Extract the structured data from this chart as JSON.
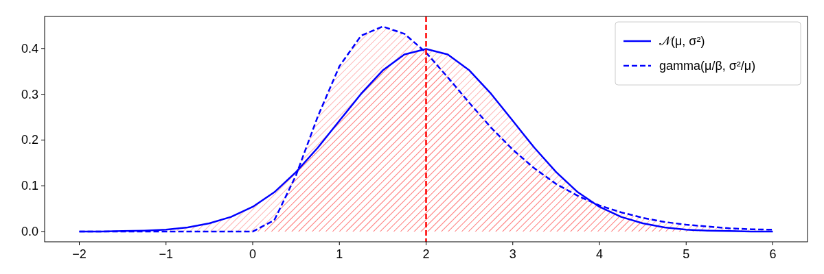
{
  "chart_data": {
    "type": "area",
    "x": [
      -2,
      -1.75,
      -1.5,
      -1.25,
      -1,
      -0.75,
      -0.5,
      -0.25,
      0,
      0.25,
      0.5,
      0.75,
      1,
      1.25,
      1.5,
      1.75,
      2,
      2.25,
      2.5,
      2.75,
      3,
      3.25,
      3.5,
      3.75,
      4,
      4.25,
      4.5,
      4.75,
      5,
      5.25,
      5.5,
      5.75,
      6
    ],
    "series": [
      {
        "name": "𝒩(μ, σ²)",
        "color": "#0000ff",
        "line_style": "solid",
        "values": [
          0,
          0,
          0.001,
          0.002,
          0.004,
          0.009,
          0.018,
          0.032,
          0.054,
          0.086,
          0.13,
          0.183,
          0.242,
          0.301,
          0.352,
          0.387,
          0.399,
          0.387,
          0.352,
          0.301,
          0.242,
          0.183,
          0.13,
          0.086,
          0.054,
          0.032,
          0.018,
          0.009,
          0.004,
          0.002,
          0.001,
          0,
          0
        ]
      },
      {
        "name": "gamma(μ/β, σ²/μ)",
        "color": "#0000ff",
        "line_style": "dashed",
        "values": [
          0,
          0,
          0,
          0,
          0,
          0,
          0,
          0,
          0,
          0.025,
          0.123,
          0.251,
          0.361,
          0.428,
          0.448,
          0.432,
          0.391,
          0.337,
          0.281,
          0.227,
          0.179,
          0.138,
          0.104,
          0.078,
          0.057,
          0.042,
          0.03,
          0.021,
          0.015,
          0.011,
          0.007,
          0.005,
          0.004
        ]
      }
    ],
    "xlim": [
      -2.4,
      6.4
    ],
    "ylim": [
      -0.0224,
      0.47
    ],
    "xticks": [
      {
        "value": -2,
        "label": "−2"
      },
      {
        "value": -1,
        "label": "−1"
      },
      0,
      1,
      2,
      3,
      4,
      5,
      6
    ],
    "yticks": [
      {
        "value": 0,
        "label": "0.0"
      },
      0.1,
      0.2,
      0.3,
      0.4
    ],
    "ref_lines": [
      {
        "axis": "x",
        "value": 2,
        "color": "#ff0000",
        "line_style": "dashed"
      }
    ],
    "legend": "top right",
    "grid": false,
    "marker": "none"
  }
}
